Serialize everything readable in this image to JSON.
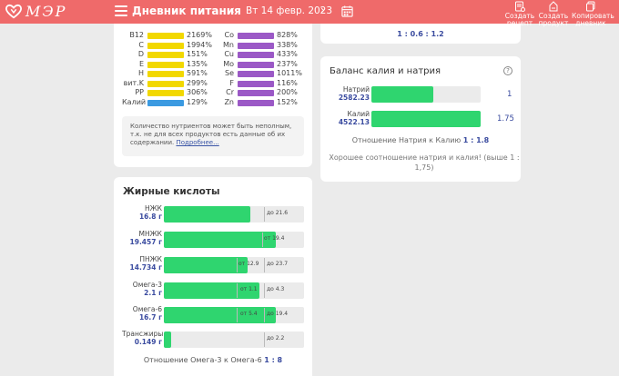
{
  "header": {
    "logo_text": "МЭР",
    "title": "Дневник питания",
    "prev": "‹",
    "date": "Вт 14 февр. 2023",
    "next": "›",
    "buttons": [
      {
        "label": "Создать рецепт",
        "icon": "recipe-icon"
      },
      {
        "label": "Создать продукт",
        "icon": "product-icon"
      },
      {
        "label": "Копировать дневник",
        "icon": "copy-icon"
      }
    ],
    "colors": {
      "bar": "#ef6a6a"
    }
  },
  "minerals": {
    "left": [
      {
        "name": "B12",
        "pct": "2169%",
        "fill": 1.0
      },
      {
        "name": "C",
        "pct": "1994%",
        "fill": 1.0
      },
      {
        "name": "D",
        "pct": "151%",
        "fill": 1.0
      },
      {
        "name": "E",
        "pct": "135%",
        "fill": 1.0
      },
      {
        "name": "H",
        "pct": "591%",
        "fill": 1.0
      },
      {
        "name": "вит.K",
        "pct": "299%",
        "fill": 1.0
      },
      {
        "name": "PP",
        "pct": "306%",
        "fill": 1.0
      },
      {
        "name": "Калий",
        "pct": "129%",
        "fill": 1.0
      }
    ],
    "right": [
      {
        "name": "Co",
        "pct": "828%",
        "fill": 1.0
      },
      {
        "name": "Mn",
        "pct": "338%",
        "fill": 1.0
      },
      {
        "name": "Cu",
        "pct": "433%",
        "fill": 1.0
      },
      {
        "name": "Mo",
        "pct": "237%",
        "fill": 1.0
      },
      {
        "name": "Se",
        "pct": "1011%",
        "fill": 1.0
      },
      {
        "name": "F",
        "pct": "116%",
        "fill": 1.0
      },
      {
        "name": "Cr",
        "pct": "200%",
        "fill": 1.0
      },
      {
        "name": "Zn",
        "pct": "152%",
        "fill": 1.0
      }
    ],
    "colors": {
      "vitamin": "#f2d800",
      "mineral": "#9b59c6",
      "potassium": "#3b9ae1"
    },
    "note": "Количество нутриентов может быть неполным, т.к. не для всех продуктов есть данные об их содержании.",
    "note_link": "Подробнее..."
  },
  "fatty": {
    "title": "Жирные кислоты",
    "rows": [
      {
        "name": "НЖК",
        "value": "16.8 г",
        "fill": 0.62,
        "from": "",
        "to": "до 21.6"
      },
      {
        "name": "МНЖК",
        "value": "19.457 г",
        "fill": 0.8,
        "from": "от 19.4",
        "to": ""
      },
      {
        "name": "ПНЖК",
        "value": "14.734 г",
        "fill": 0.6,
        "from": "от 12.9",
        "to": "до 23.7"
      },
      {
        "name": "Омега-3",
        "value": "2.1 г",
        "fill": 0.68,
        "from": "от 1.1",
        "to": "до 4.3"
      },
      {
        "name": "Омега-6",
        "value": "16.7 г",
        "fill": 0.8,
        "from": "от 5.4",
        "to": "до 19.4"
      },
      {
        "name": "Трансжиры",
        "value": "0.149 г",
        "fill": 0.05,
        "from": "",
        "to": "до 2.2"
      }
    ],
    "ratio_label": "Отношение Омега-3 к Омега-6",
    "ratio_value": "1 : 8"
  },
  "potassium": {
    "top_ratio": "1 : 0.6 : 1.2",
    "title": "Баланс калия и натрия",
    "rows": [
      {
        "name": "Натрий",
        "value": "2582.23",
        "fill": 0.57,
        "ratio": "1"
      },
      {
        "name": "Калий",
        "value": "4522.13",
        "fill": 1.0,
        "ratio": "1.75"
      }
    ],
    "ratio_label": "Отношение Натрия к Калию",
    "ratio_value": "1 : 1.8",
    "good_text": "Хорошее соотношение натрия и калия! (выше 1 : 1,75)"
  }
}
